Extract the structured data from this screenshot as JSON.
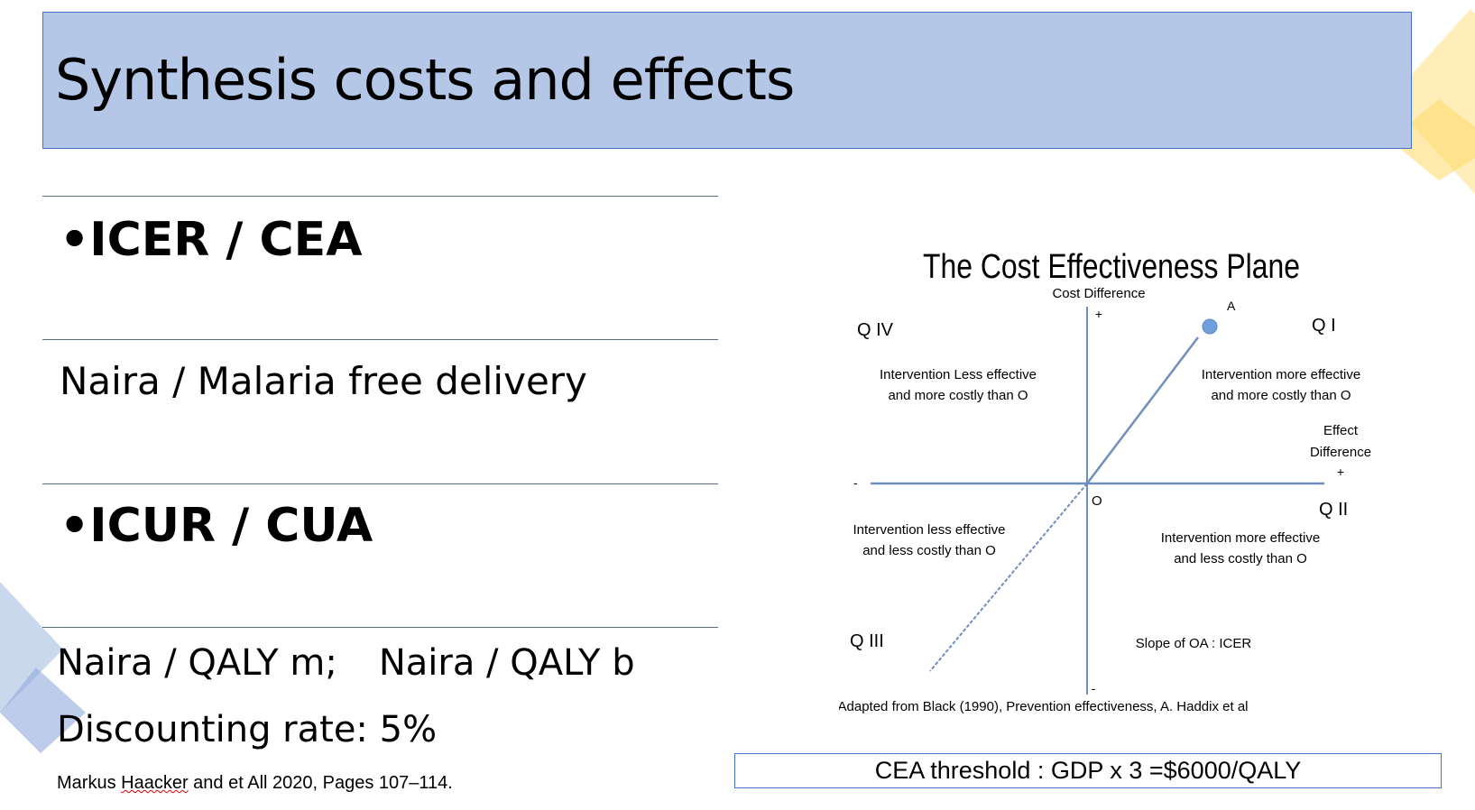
{
  "slide": {
    "title": "Synthesis costs and effects",
    "rows": [
      {
        "bullet": "•",
        "text": "ICER / CEA"
      },
      {
        "text": "Naira / Malaria free delivery"
      },
      {
        "bullet": "•",
        "text": "ICUR / CUA"
      }
    ],
    "qaly_m": "Naira / QALY m;",
    "qaly_b": "Naira / QALY b",
    "discounting": "Discounting rate: 5%",
    "citation_pre": "Markus ",
    "citation_name": "Haacker",
    "citation_post": " and et All 2020, Pages 107–114.",
    "threshold": "CEA threshold : GDP x 3 =$6000/QALY"
  },
  "diagram": {
    "title": "The Cost Effectiveness Plane",
    "y_axis_label": "Cost Difference",
    "y_plus": "+",
    "y_minus": "-",
    "x_axis_label_1": "Effect",
    "x_axis_label_2": "Difference",
    "x_plus": "+",
    "x_minus": "-",
    "origin": "O",
    "point": "A",
    "q1": "Q I",
    "q2": "Q II",
    "q3": "Q III",
    "q4": "Q IV",
    "q1_text_1": "Intervention more effective",
    "q1_text_2": "and more costly than O",
    "q2_text_1": "Intervention more effective",
    "q2_text_2": "and less costly than O",
    "q3_text_1": "Intervention less effective",
    "q3_text_2": "and less costly than O",
    "q4_text_1": "Intervention Less effective",
    "q4_text_2": "and more costly than O",
    "slope": "Slope of OA : ICER",
    "source": "Adapted from Black (1990), Prevention effectiveness, A. Haddix et al"
  },
  "colors": {
    "title_fill": "#b4c7e7",
    "title_border": "#4472c4",
    "axis": "#6f8fbf",
    "point": "#6fa0de",
    "deco_yellow": "#ffd966",
    "deco_blue": "#8faadc"
  }
}
